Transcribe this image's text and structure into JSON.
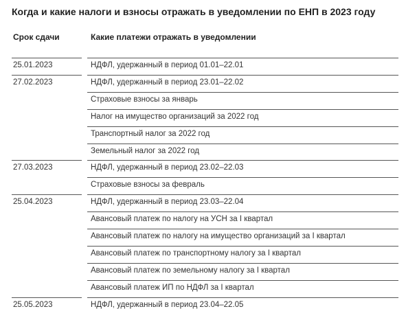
{
  "title": "Когда и какие налоги и взносы отражать в уведомлении по ЕНП в 2023 году",
  "headers": {
    "date": "Срок сдачи",
    "payments": "Какие платежи отражать в уведомлении"
  },
  "groups": [
    {
      "date": "25.01.2023",
      "payments": [
        "НДФЛ, удержанный в период 01.01–22.01"
      ]
    },
    {
      "date": "27.02.2023",
      "payments": [
        "НДФЛ, удержанный в период 23.01–22.02",
        "Страховые взносы за январь",
        "Налог на имущество организаций за 2022 год",
        "Транспортный налог за 2022 год",
        "Земельный налог за 2022 год"
      ]
    },
    {
      "date": "27.03.2023",
      "payments": [
        "НДФЛ, удержанный в период 23.02–22.03",
        "Страховые взносы за февраль"
      ]
    },
    {
      "date": "25.04.2023",
      "payments": [
        "НДФЛ, удержанный в период 23.03–22.04",
        "Авансовый платеж по налогу на УСН за I квартал",
        "Авансовый платеж по налогу на имущество организаций за I квартал",
        "Авансовый платеж по транспортному налогу за I квартал",
        "Авансовый платеж по земельному налогу за I квартал",
        "Авансовый платеж ИП по НДФЛ за I квартал"
      ]
    },
    {
      "date": "25.05.2023",
      "payments": [
        "НДФЛ, удержанный в период 23.04–22.05"
      ]
    }
  ]
}
